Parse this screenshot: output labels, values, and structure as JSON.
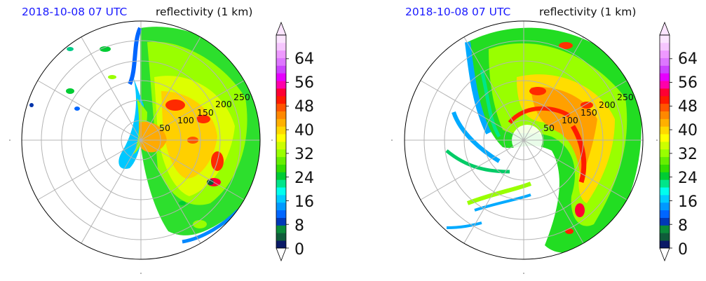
{
  "panels": [
    {
      "id": "left",
      "date_label": "2018-10-08 07 UTC",
      "field_label": "reflectivity (1 km)",
      "range_labels": [
        "50",
        "100",
        "150",
        "200",
        "250"
      ]
    },
    {
      "id": "right",
      "date_label": "2018-10-08 07 UTC",
      "field_label": "reflectivity (1 km)",
      "range_labels": [
        "50",
        "100",
        "150",
        "200",
        "250"
      ]
    }
  ],
  "colorbar": {
    "tick_labels": [
      "0",
      "8",
      "16",
      "24",
      "32",
      "40",
      "48",
      "56",
      "64"
    ],
    "min": 0,
    "max": 72,
    "extend": "both",
    "colors": [
      "#0a1a66",
      "#0f5c3a",
      "#0a8c3a",
      "#0039b8",
      "#0066ff",
      "#0099ff",
      "#00ccff",
      "#00ffee",
      "#00e58a",
      "#00cc33",
      "#33dd00",
      "#66ee00",
      "#99ff00",
      "#ccff00",
      "#ffff00",
      "#ffd800",
      "#ffb000",
      "#ff8800",
      "#ff5500",
      "#ff1a00",
      "#ff0033",
      "#ff00aa",
      "#e600ff",
      "#cc44ff",
      "#dd77ff",
      "#ee99ff",
      "#f6c6ff",
      "#fbe4ff"
    ]
  }
}
